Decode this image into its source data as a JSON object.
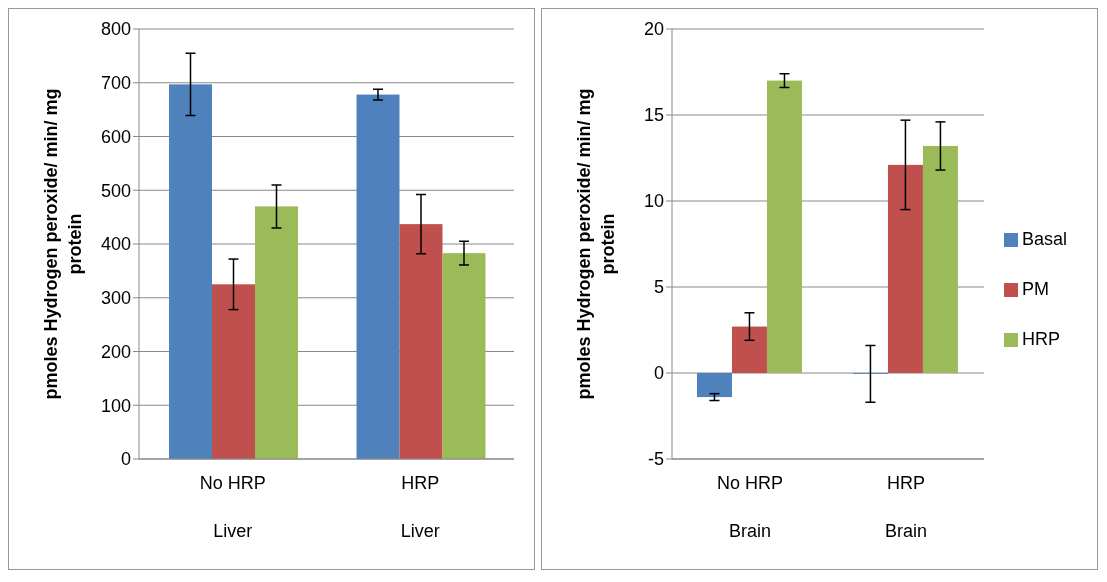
{
  "chart_data": [
    {
      "type": "bar",
      "ylabel": "pmoles Hydrogen peroxide/ min/ mg protein",
      "categories": [
        "No HRP\nLiver",
        "HRP\nLiver"
      ],
      "ylim": [
        0,
        800
      ],
      "yticks": [
        0,
        100,
        200,
        300,
        400,
        500,
        600,
        700,
        800
      ],
      "grid": "y",
      "legend": false,
      "series": [
        {
          "color": "#4f81bd",
          "values": [
            697,
            678
          ],
          "errors": [
            58,
            10
          ]
        },
        {
          "color": "#c0504d",
          "values": [
            325,
            437
          ],
          "errors": [
            47,
            55
          ]
        },
        {
          "color": "#9bbb59",
          "values": [
            470,
            383
          ],
          "errors": [
            40,
            22
          ]
        }
      ]
    },
    {
      "type": "bar",
      "ylabel": "pmoles Hydrogen peroxide/ min/ mg protein",
      "categories": [
        "No HRP\nBrain",
        "HRP\nBrain"
      ],
      "ylim": [
        -5,
        20
      ],
      "yticks": [
        -5,
        0,
        5,
        10,
        15,
        20
      ],
      "grid": "y",
      "legend": "right",
      "series": [
        {
          "name": "Basal",
          "color": "#4f81bd",
          "values": [
            -1.4,
            -0.05
          ],
          "errors": [
            0.2,
            1.65
          ]
        },
        {
          "name": "PM",
          "color": "#c0504d",
          "values": [
            2.7,
            12.1
          ],
          "errors": [
            0.8,
            2.6
          ]
        },
        {
          "name": "HRP",
          "color": "#9bbb59",
          "values": [
            17,
            13.2
          ],
          "errors": [
            0.4,
            1.4
          ]
        }
      ]
    }
  ]
}
